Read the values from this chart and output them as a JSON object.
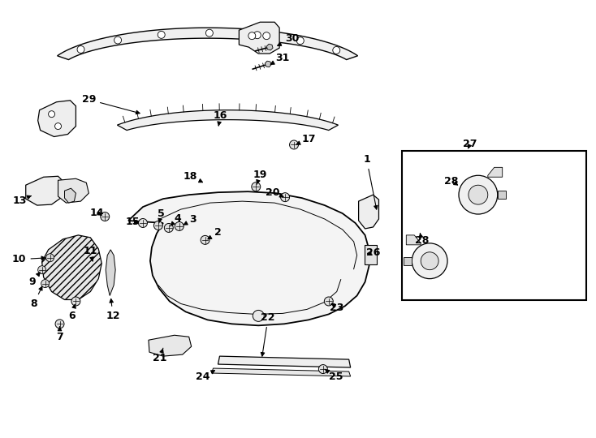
{
  "bg_color": "#ffffff",
  "line_color": "#000000",
  "fig_width": 7.34,
  "fig_height": 5.4,
  "dpi": 100,
  "annotations": [
    [
      "1",
      450,
      195,
      420,
      200,
      "right"
    ],
    [
      "2",
      268,
      285,
      252,
      293,
      "right"
    ],
    [
      "3",
      237,
      270,
      222,
      278,
      "right"
    ],
    [
      "4",
      219,
      268,
      207,
      278,
      "right"
    ],
    [
      "5",
      198,
      262,
      194,
      275,
      "right"
    ],
    [
      "6",
      87,
      388,
      93,
      370,
      "left"
    ],
    [
      "7",
      72,
      415,
      72,
      400,
      "left"
    ],
    [
      "8",
      40,
      373,
      56,
      367,
      "left"
    ],
    [
      "9",
      37,
      345,
      52,
      352,
      "left"
    ],
    [
      "10",
      22,
      318,
      62,
      328,
      "left"
    ],
    [
      "11",
      110,
      308,
      114,
      320,
      "right"
    ],
    [
      "12",
      138,
      388,
      138,
      375,
      "right"
    ],
    [
      "13",
      22,
      245,
      42,
      248,
      "left"
    ],
    [
      "14",
      118,
      260,
      128,
      263,
      "right"
    ],
    [
      "15",
      163,
      272,
      172,
      272,
      "right"
    ],
    [
      "16",
      272,
      140,
      270,
      155,
      "right"
    ],
    [
      "17",
      379,
      170,
      365,
      175,
      "right"
    ],
    [
      "18",
      235,
      215,
      250,
      222,
      "right"
    ],
    [
      "19",
      320,
      213,
      312,
      225,
      "right"
    ],
    [
      "20",
      335,
      235,
      352,
      240,
      "right"
    ],
    [
      "21",
      197,
      440,
      200,
      428,
      "right"
    ],
    [
      "22",
      330,
      390,
      322,
      378,
      "right"
    ],
    [
      "23",
      415,
      378,
      406,
      370,
      "right"
    ],
    [
      "24",
      250,
      465,
      268,
      455,
      "right"
    ],
    [
      "25",
      413,
      465,
      400,
      455,
      "right"
    ],
    [
      "26",
      460,
      310,
      445,
      313,
      "right"
    ],
    [
      "27",
      580,
      175,
      576,
      185,
      "right"
    ],
    [
      "28",
      555,
      220,
      567,
      230,
      "right"
    ],
    [
      "28",
      520,
      295,
      517,
      285,
      "left"
    ],
    [
      "29",
      108,
      120,
      178,
      138,
      "right"
    ],
    [
      "30",
      360,
      45,
      340,
      55,
      "right"
    ],
    [
      "31",
      348,
      68,
      332,
      75,
      "right"
    ]
  ]
}
